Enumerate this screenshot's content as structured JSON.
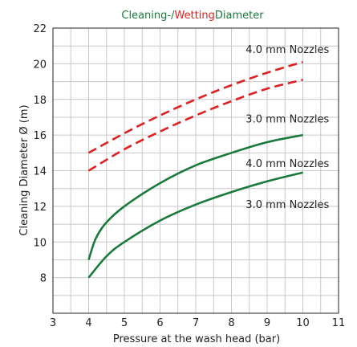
{
  "chart_data": {
    "type": "line",
    "title_parts": [
      {
        "text": "Cleaning-/",
        "color": "#1a7a3c"
      },
      {
        "text": "Wetting",
        "color": "#e02020"
      },
      {
        "text": "Diameter",
        "color": "#1a7a3c"
      }
    ],
    "xlabel": "Pressure at the wash head (bar)",
    "ylabel": "Cleaning Diameter Ø (m)",
    "xlim": [
      3,
      11
    ],
    "ylim": [
      6,
      22
    ],
    "xticks": [
      3,
      4,
      5,
      6,
      7,
      8,
      9,
      10,
      11
    ],
    "yticks": [
      8,
      10,
      12,
      14,
      16,
      18,
      20,
      22
    ],
    "grid": true,
    "series": [
      {
        "kind": "wetting",
        "color": "#e02020",
        "dashed": true,
        "x": [
          4,
          5,
          6,
          7,
          8,
          9,
          10
        ],
        "y": [
          15,
          16.1,
          17.1,
          18,
          18.8,
          19.5,
          20.1
        ]
      },
      {
        "kind": "wetting",
        "color": "#e02020",
        "dashed": true,
        "x": [
          4,
          5,
          6,
          7,
          8,
          9,
          10
        ],
        "y": [
          14,
          15.2,
          16.2,
          17.1,
          17.9,
          18.6,
          19.1
        ]
      },
      {
        "kind": "cleaning",
        "color": "#1a7a3c",
        "dashed": false,
        "x": [
          4,
          4.2,
          4.5,
          5,
          6,
          7,
          8,
          9,
          10
        ],
        "y": [
          9,
          10.2,
          11.1,
          12,
          13.3,
          14.3,
          15.0,
          15.6,
          16.0
        ]
      },
      {
        "kind": "cleaning",
        "color": "#1a7a3c",
        "dashed": false,
        "x": [
          4,
          4.5,
          5,
          6,
          7,
          8,
          9,
          10
        ],
        "y": [
          8,
          9.2,
          10,
          11.2,
          12.1,
          12.8,
          13.4,
          13.9
        ]
      }
    ],
    "annotations": [
      {
        "text": "4.0 mm Nozzles",
        "x": 8.4,
        "y": 20.6
      },
      {
        "text": "3.0 mm Nozzles",
        "x": 8.4,
        "y": 16.7
      },
      {
        "text": "4.0 mm Nozzles",
        "x": 8.4,
        "y": 14.2
      },
      {
        "text": "3.0 mm Nozzles",
        "x": 8.4,
        "y": 11.9
      }
    ]
  }
}
